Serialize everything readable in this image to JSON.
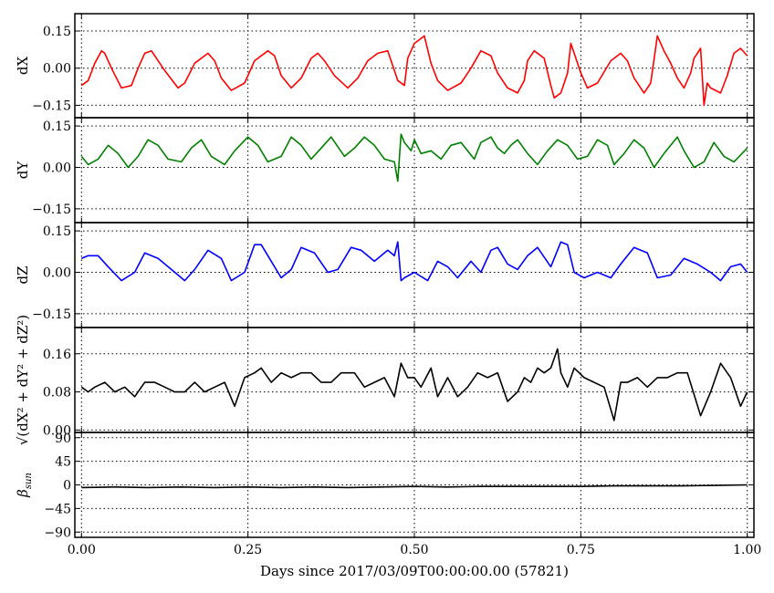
{
  "chart_data": {
    "type": "line",
    "xlabel": "Days since 2017/03/09T00:00:00.00 (57821)",
    "xlim": [
      -0.01,
      1.01
    ],
    "xticks": [
      0.0,
      0.25,
      0.5,
      0.75,
      1.0
    ],
    "xtick_labels": [
      "0.00",
      "0.25",
      "0.50",
      "0.75",
      "1.00"
    ],
    "grid": true,
    "panels": [
      {
        "id": "dx",
        "ylabel": "dX",
        "color": "#ff0000",
        "ylim": [
          -0.2,
          0.22
        ],
        "yticks": [
          -0.15,
          0.0,
          0.15
        ],
        "ytick_labels": [
          "−0.15",
          "0.00",
          "0.15"
        ],
        "x": [
          0.0,
          0.01,
          0.02,
          0.03,
          0.035,
          0.045,
          0.06,
          0.075,
          0.085,
          0.095,
          0.105,
          0.125,
          0.145,
          0.155,
          0.17,
          0.19,
          0.2,
          0.21,
          0.225,
          0.245,
          0.26,
          0.28,
          0.29,
          0.3,
          0.315,
          0.33,
          0.345,
          0.355,
          0.365,
          0.38,
          0.4,
          0.415,
          0.43,
          0.445,
          0.46,
          0.475,
          0.485,
          0.49,
          0.5,
          0.515,
          0.525,
          0.535,
          0.55,
          0.57,
          0.585,
          0.6,
          0.615,
          0.625,
          0.64,
          0.655,
          0.665,
          0.67,
          0.68,
          0.695,
          0.705,
          0.71,
          0.72,
          0.73,
          0.735,
          0.74,
          0.75,
          0.76,
          0.775,
          0.795,
          0.81,
          0.82,
          0.83,
          0.845,
          0.855,
          0.865,
          0.875,
          0.885,
          0.895,
          0.905,
          0.915,
          0.92,
          0.93,
          0.935,
          0.94,
          0.945,
          0.96,
          0.97,
          0.98,
          0.99,
          1.0
        ],
        "y": [
          -0.07,
          -0.05,
          0.02,
          0.07,
          0.06,
          0.0,
          -0.08,
          -0.07,
          0.0,
          0.06,
          0.07,
          -0.01,
          -0.08,
          -0.06,
          0.02,
          0.06,
          0.03,
          -0.04,
          -0.09,
          -0.06,
          0.03,
          0.07,
          0.05,
          -0.03,
          -0.08,
          -0.04,
          0.04,
          0.06,
          0.03,
          -0.03,
          -0.08,
          -0.04,
          0.03,
          0.06,
          0.07,
          -0.05,
          -0.07,
          0.04,
          0.1,
          0.13,
          0.02,
          -0.05,
          -0.09,
          -0.06,
          0.0,
          0.07,
          0.05,
          -0.02,
          -0.08,
          -0.1,
          -0.05,
          0.03,
          0.07,
          0.04,
          -0.07,
          -0.12,
          -0.1,
          -0.02,
          0.1,
          0.06,
          -0.02,
          -0.08,
          -0.06,
          0.03,
          0.06,
          0.03,
          -0.04,
          -0.1,
          -0.06,
          0.13,
          0.07,
          0.02,
          -0.04,
          -0.08,
          -0.02,
          0.04,
          0.08,
          -0.15,
          -0.06,
          -0.08,
          -0.1,
          -0.03,
          0.06,
          0.08,
          0.05
        ]
      },
      {
        "id": "dy",
        "ylabel": "dY",
        "color": "#008000",
        "ylim": [
          -0.2,
          0.18
        ],
        "yticks": [
          -0.15,
          0.0,
          0.15
        ],
        "ytick_labels": [
          "−0.15",
          "0.00",
          "0.15"
        ],
        "x": [
          0.0,
          0.01,
          0.025,
          0.04,
          0.055,
          0.07,
          0.085,
          0.1,
          0.115,
          0.13,
          0.15,
          0.165,
          0.18,
          0.195,
          0.215,
          0.23,
          0.25,
          0.265,
          0.28,
          0.3,
          0.315,
          0.33,
          0.345,
          0.36,
          0.375,
          0.395,
          0.41,
          0.425,
          0.44,
          0.455,
          0.47,
          0.475,
          0.48,
          0.485,
          0.495,
          0.5,
          0.51,
          0.525,
          0.54,
          0.555,
          0.57,
          0.59,
          0.6,
          0.615,
          0.625,
          0.635,
          0.645,
          0.655,
          0.67,
          0.685,
          0.7,
          0.715,
          0.73,
          0.745,
          0.76,
          0.775,
          0.79,
          0.8,
          0.815,
          0.83,
          0.845,
          0.86,
          0.875,
          0.895,
          0.905,
          0.92,
          0.935,
          0.95,
          0.965,
          0.98,
          1.0
        ],
        "y": [
          0.04,
          0.01,
          0.03,
          0.08,
          0.05,
          0.0,
          0.04,
          0.1,
          0.08,
          0.03,
          0.02,
          0.07,
          0.1,
          0.04,
          0.01,
          0.06,
          0.11,
          0.08,
          0.02,
          0.04,
          0.11,
          0.08,
          0.03,
          0.07,
          0.11,
          0.04,
          0.07,
          0.11,
          0.08,
          0.03,
          0.02,
          -0.05,
          0.12,
          0.09,
          0.06,
          0.1,
          0.05,
          0.06,
          0.03,
          0.08,
          0.09,
          0.03,
          0.09,
          0.11,
          0.07,
          0.05,
          0.08,
          0.1,
          0.05,
          0.01,
          0.06,
          0.1,
          0.08,
          0.03,
          0.04,
          0.1,
          0.08,
          0.01,
          0.05,
          0.1,
          0.07,
          0.0,
          0.05,
          0.11,
          0.06,
          0.0,
          0.02,
          0.09,
          0.04,
          0.02,
          0.07
        ]
      },
      {
        "id": "dz",
        "ylabel": "dZ",
        "color": "#0000ff",
        "ylim": [
          -0.2,
          0.18
        ],
        "yticks": [
          -0.15,
          0.0,
          0.15
        ],
        "ytick_labels": [
          "−0.15",
          "0.00",
          "0.15"
        ],
        "x": [
          0.0,
          0.01,
          0.025,
          0.04,
          0.06,
          0.08,
          0.095,
          0.115,
          0.135,
          0.155,
          0.17,
          0.19,
          0.21,
          0.225,
          0.245,
          0.26,
          0.27,
          0.285,
          0.3,
          0.315,
          0.33,
          0.35,
          0.37,
          0.385,
          0.405,
          0.42,
          0.44,
          0.46,
          0.47,
          0.475,
          0.48,
          0.485,
          0.5,
          0.52,
          0.535,
          0.55,
          0.565,
          0.585,
          0.6,
          0.615,
          0.625,
          0.64,
          0.655,
          0.67,
          0.685,
          0.705,
          0.72,
          0.73,
          0.74,
          0.755,
          0.775,
          0.795,
          0.81,
          0.83,
          0.85,
          0.865,
          0.885,
          0.905,
          0.925,
          0.945,
          0.96,
          0.975,
          0.99,
          1.0
        ],
        "y": [
          0.05,
          0.06,
          0.06,
          0.02,
          -0.03,
          0.0,
          0.07,
          0.05,
          0.01,
          -0.03,
          0.01,
          0.08,
          0.05,
          -0.03,
          0.0,
          0.1,
          0.1,
          0.04,
          -0.02,
          0.01,
          0.09,
          0.07,
          0.0,
          0.01,
          0.09,
          0.08,
          0.04,
          0.08,
          0.06,
          0.11,
          -0.03,
          -0.02,
          0.0,
          -0.03,
          0.04,
          0.02,
          -0.02,
          0.04,
          0.0,
          0.08,
          0.09,
          0.03,
          0.01,
          0.06,
          0.09,
          0.02,
          0.11,
          0.1,
          0.0,
          -0.02,
          0.0,
          -0.02,
          0.03,
          0.09,
          0.07,
          -0.02,
          -0.01,
          0.05,
          0.03,
          0.0,
          -0.03,
          0.02,
          0.03,
          0.0
        ]
      },
      {
        "id": "dr",
        "ylabel": "√(dX² + dY² + dZ²)",
        "color": "#000000",
        "ylim": [
          -0.005,
          0.215
        ],
        "yticks": [
          0.0,
          0.08,
          0.16
        ],
        "ytick_labels": [
          "0.00",
          "0.08",
          "0.16"
        ],
        "x": [
          0.0,
          0.01,
          0.02,
          0.035,
          0.05,
          0.065,
          0.08,
          0.095,
          0.11,
          0.125,
          0.14,
          0.155,
          0.17,
          0.185,
          0.2,
          0.215,
          0.23,
          0.245,
          0.26,
          0.27,
          0.285,
          0.3,
          0.315,
          0.33,
          0.345,
          0.36,
          0.375,
          0.39,
          0.41,
          0.425,
          0.44,
          0.455,
          0.47,
          0.48,
          0.49,
          0.5,
          0.51,
          0.525,
          0.535,
          0.55,
          0.565,
          0.58,
          0.595,
          0.61,
          0.625,
          0.64,
          0.655,
          0.665,
          0.675,
          0.685,
          0.695,
          0.705,
          0.715,
          0.72,
          0.73,
          0.74,
          0.755,
          0.77,
          0.785,
          0.8,
          0.81,
          0.82,
          0.835,
          0.85,
          0.865,
          0.88,
          0.895,
          0.91,
          0.93,
          0.945,
          0.96,
          0.975,
          0.99,
          1.0
        ],
        "y": [
          0.09,
          0.08,
          0.09,
          0.1,
          0.08,
          0.09,
          0.07,
          0.1,
          0.1,
          0.09,
          0.08,
          0.08,
          0.1,
          0.08,
          0.09,
          0.1,
          0.05,
          0.11,
          0.12,
          0.13,
          0.1,
          0.12,
          0.11,
          0.12,
          0.12,
          0.1,
          0.1,
          0.12,
          0.12,
          0.09,
          0.1,
          0.11,
          0.07,
          0.14,
          0.11,
          0.11,
          0.09,
          0.13,
          0.07,
          0.11,
          0.07,
          0.09,
          0.12,
          0.11,
          0.12,
          0.06,
          0.08,
          0.11,
          0.1,
          0.13,
          0.12,
          0.13,
          0.17,
          0.12,
          0.09,
          0.13,
          0.11,
          0.1,
          0.09,
          0.02,
          0.1,
          0.1,
          0.11,
          0.09,
          0.11,
          0.11,
          0.12,
          0.12,
          0.03,
          0.08,
          0.14,
          0.11,
          0.05,
          0.08
        ]
      },
      {
        "id": "beta",
        "ylabel": "β_sun",
        "ylabel_main": "β",
        "ylabel_sub": "sun",
        "color": "#000000",
        "ylim": [
          -100,
          100
        ],
        "yticks": [
          -90,
          -45,
          0,
          45,
          90
        ],
        "ytick_labels": [
          "−90",
          "−45",
          "0",
          "45",
          "90"
        ],
        "x": [
          0.0,
          0.05,
          0.1,
          0.15,
          0.2,
          0.25,
          0.3,
          0.35,
          0.4,
          0.45,
          0.5,
          0.55,
          0.6,
          0.65,
          0.7,
          0.75,
          0.8,
          0.85,
          0.9,
          0.95,
          1.0
        ],
        "y": [
          -5,
          -4,
          -5,
          -4,
          -5,
          -4,
          -5,
          -4,
          -5,
          -4,
          -3,
          -4,
          -3,
          -3,
          -3,
          -3,
          -2,
          -2,
          -2,
          -1,
          0
        ]
      }
    ]
  }
}
